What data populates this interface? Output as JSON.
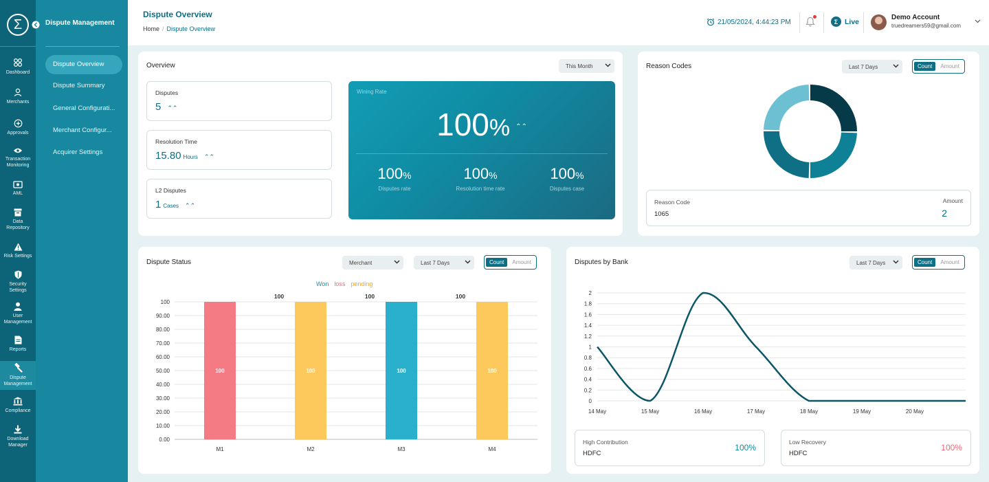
{
  "rail": {
    "items": [
      {
        "label": "Dashboard",
        "icon": "dashboard-icon"
      },
      {
        "label": "Merchants",
        "icon": "person-icon"
      },
      {
        "label": "Approvals",
        "icon": "approvals-icon"
      },
      {
        "label": "Transaction Monitoring",
        "icon": "eye-icon"
      },
      {
        "label": "AML",
        "icon": "money-icon"
      },
      {
        "label": "Data Repository",
        "icon": "archive-icon"
      },
      {
        "label": "Risk Settings",
        "icon": "warning-icon"
      },
      {
        "label": "Security Settings",
        "icon": "shield-icon"
      },
      {
        "label": "User Management",
        "icon": "user-icon"
      },
      {
        "label": "Reports",
        "icon": "document-icon"
      },
      {
        "label": "Dispute Management",
        "icon": "gavel-icon"
      },
      {
        "label": "Compliance",
        "icon": "bank-icon"
      },
      {
        "label": "Download Manager",
        "icon": "download-icon"
      }
    ]
  },
  "subnav": {
    "title": "Dispute Management",
    "items": [
      "Dispute Overview",
      "Dispute Summary",
      "General Configurati...",
      "Merchant Configur...",
      "Acquirer Settings"
    ]
  },
  "header": {
    "title": "Dispute Overview",
    "breadcrumb_home": "Home",
    "breadcrumb_sep": "/",
    "breadcrumb_current": "Dispute Overview",
    "datetime": "21/05/2024, 4:44:23 PM",
    "live": "Live",
    "account_name": "Demo Account",
    "account_email": "truedreamers59@gmail.com"
  },
  "overview": {
    "title": "Overview",
    "period": "This Month",
    "disputes_label": "Disputes",
    "disputes_value": "5",
    "resolution_label": "Resolution Time",
    "resolution_value": "15.80",
    "resolution_unit": "Hours",
    "l2_label": "L2 Disputes",
    "l2_value": "1",
    "l2_unit": "Cases",
    "winning_label": "Wining Rate",
    "winning_value": "100",
    "pct": "%",
    "sub": [
      {
        "value": "100",
        "label": "Disputes rate"
      },
      {
        "value": "100",
        "label": "Resolution time rate"
      },
      {
        "value": "100",
        "label": "Disputes case"
      }
    ]
  },
  "reason_codes": {
    "title": "Reason Codes",
    "period": "Last 7 Days",
    "toggle_count": "Count",
    "toggle_amount": "Amount",
    "box_code_label": "Reason Code",
    "box_code_value": "1065",
    "box_amount_label": "Amount",
    "box_amount_value": "2",
    "donut_colors": [
      "#073a48",
      "#0e8197",
      "#0e6f85",
      "#6cc0d1"
    ]
  },
  "dispute_status": {
    "title": "Dispute Status",
    "filter": "Merchant",
    "period": "Last 7 Days",
    "toggle_count": "Count",
    "toggle_amount": "Amount",
    "legend": [
      {
        "label": "Won",
        "color": "#1e8fa8"
      },
      {
        "label": "loss",
        "color": "#f2687a"
      },
      {
        "label": "pending",
        "color": "#f5a623"
      }
    ]
  },
  "disputes_by_bank": {
    "title": "Disputes by Bank",
    "period": "Last 7 Days",
    "toggle_count": "Count",
    "toggle_amount": "Amount",
    "high_label": "High Contribution",
    "high_bank": "HDFC",
    "high_value": "100%",
    "low_label": "Low Recovery",
    "low_bank": "HDFC",
    "low_value": "100%"
  },
  "chart_data": [
    {
      "type": "bar",
      "categories": [
        "M1",
        "M2",
        "M3",
        "M4"
      ],
      "values": [
        100,
        100,
        100,
        100
      ],
      "bar_colors": [
        "#f47a84",
        "#fdc95c",
        "#2ab0cc",
        "#fdc95c"
      ],
      "top_labels": [
        "",
        "100",
        "100",
        "100"
      ],
      "yticks": [
        "0.00",
        "10.00",
        "20.00",
        "30.00",
        "40.00",
        "50.00",
        "60.00",
        "70.00",
        "80.00",
        "90.00",
        "100"
      ],
      "ylim": [
        0,
        100
      ],
      "grid": true
    },
    {
      "type": "line",
      "x": [
        "14 May",
        "15 May",
        "16 May",
        "17 May",
        "18 May",
        "19 May",
        "20 May"
      ],
      "values": [
        1,
        0,
        2,
        1,
        0,
        0,
        0
      ],
      "yticks": [
        "0",
        "0.2",
        "0.4",
        "0.6",
        "0.8",
        "1",
        "1.2",
        "1.4",
        "1.6",
        "1.8",
        "2"
      ],
      "ylim": [
        0,
        2
      ],
      "color": "#0b5667",
      "grid": true
    }
  ]
}
